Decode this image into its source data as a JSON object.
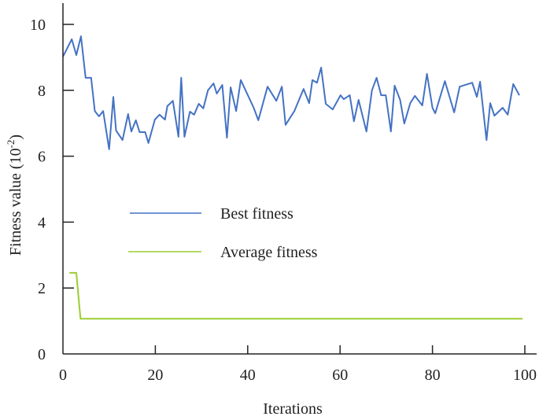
{
  "chart_data": {
    "type": "line",
    "title": "",
    "xlabel": "Iterations",
    "ylabel": "Fitness value (10",
    "ylabel_exponent": "-2",
    "ylabel_close": ")",
    "xlim": [
      0,
      103
    ],
    "ylim": [
      0,
      10.6
    ],
    "xticks": [
      0,
      20,
      40,
      60,
      80,
      100
    ],
    "yticks": [
      0,
      2,
      4,
      6,
      8,
      10
    ],
    "grid": false,
    "legend_position": "center-left",
    "series": [
      {
        "name": "Best fitness",
        "color": "#4472c4",
        "x": [
          0,
          1.9,
          2.9,
          3.9,
          4.9,
          6.1,
          6.9,
          7.8,
          8.7,
          10.0,
          10.9,
          11.5,
          12.9,
          14.1,
          14.8,
          15.8,
          16.6,
          17.8,
          18.5,
          19.9,
          20.9,
          22.1,
          22.6,
          23.8,
          25.0,
          25.6,
          26.3,
          27.5,
          28.4,
          29.4,
          30.4,
          31.4,
          32.6,
          33.3,
          34.5,
          35.5,
          36.3,
          37.5,
          38.5,
          41.3,
          42.3,
          44.3,
          46.2,
          47.4,
          48.2,
          50.1,
          52.1,
          53.3,
          54.0,
          55.0,
          55.9,
          56.9,
          58.4,
          60.1,
          60.8,
          62.1,
          63.0,
          64.0,
          65.7,
          66.9,
          67.9,
          68.9,
          69.9,
          71.0,
          71.8,
          73.0,
          73.9,
          75.2,
          76.2,
          77.8,
          78.8,
          80.0,
          80.6,
          82.7,
          84.7,
          85.9,
          88.6,
          89.6,
          90.3,
          91.7,
          92.5,
          93.4,
          95.2,
          96.3,
          97.5,
          98.8
        ],
        "values": [
          9.02,
          9.55,
          9.07,
          9.64,
          8.38,
          8.38,
          7.37,
          7.21,
          7.37,
          6.21,
          7.8,
          6.78,
          6.49,
          7.28,
          6.75,
          7.09,
          6.73,
          6.73,
          6.4,
          7.11,
          7.26,
          7.11,
          7.52,
          7.68,
          6.59,
          8.38,
          6.59,
          7.35,
          7.26,
          7.59,
          7.45,
          8.0,
          8.21,
          7.9,
          8.16,
          6.56,
          8.09,
          7.37,
          8.31,
          7.47,
          7.09,
          8.11,
          7.68,
          8.11,
          6.95,
          7.37,
          8.04,
          7.61,
          8.31,
          8.23,
          8.69,
          7.59,
          7.42,
          7.85,
          7.73,
          7.85,
          7.06,
          7.71,
          6.75,
          8.0,
          8.38,
          7.85,
          7.85,
          6.75,
          8.14,
          7.71,
          6.99,
          7.61,
          7.83,
          7.54,
          8.5,
          7.47,
          7.3,
          8.28,
          7.33,
          8.11,
          8.23,
          7.8,
          8.26,
          6.49,
          7.61,
          7.23,
          7.47,
          7.26,
          8.19,
          7.85
        ]
      },
      {
        "name": "Average fitness",
        "color": "#9acd32",
        "x": [
          1.4,
          2.9,
          3.8,
          99.5
        ],
        "values": [
          2.46,
          2.46,
          1.07,
          1.07
        ]
      }
    ]
  }
}
